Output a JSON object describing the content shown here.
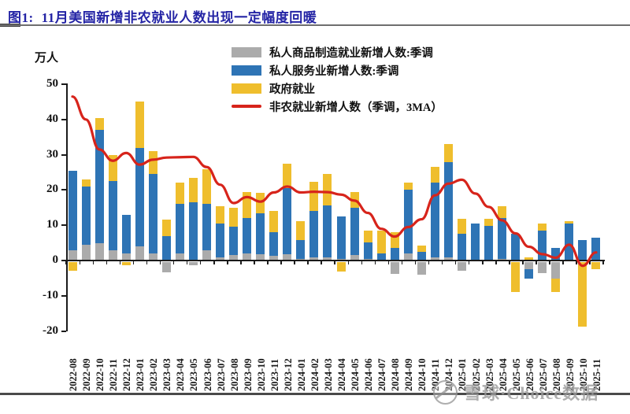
{
  "figure": {
    "label": "图1:",
    "title": "11月美国新增非农就业人数出现一定幅度回暖"
  },
  "unit_label": "万人",
  "legend": {
    "items": [
      {
        "label": "私人商品制造就业新增人数:季调",
        "color": "#ABABAB",
        "type": "box"
      },
      {
        "label": "私人服务业新增人数:季调",
        "color": "#2E74B5",
        "type": "box"
      },
      {
        "label": "政府就业",
        "color": "#EFBE2D",
        "type": "box"
      },
      {
        "label": "非农就业新增人数（季调，3MA）",
        "color": "#D7241B",
        "type": "line"
      }
    ]
  },
  "watermark": {
    "text": "雪球·Choice数据"
  },
  "colors": {
    "title": "#2424a5",
    "goods_bar": "#ABABAB",
    "services_bar": "#2E74B5",
    "government_bar": "#EFBE2D",
    "trend_line": "#D7241B"
  },
  "chart_data": {
    "type": "bar",
    "subtype": "stacked-bar-with-line",
    "stacked": true,
    "grid": false,
    "legend_position": "top",
    "ylabel": "万人",
    "ylim": [
      -20,
      50
    ],
    "yticks": [
      -20,
      -10,
      0,
      10,
      20,
      30,
      40,
      50
    ],
    "categories": [
      "2022-08",
      "2022-09",
      "2022-10",
      "2022-11",
      "2022-12",
      "2023-01",
      "2023-02",
      "2023-03",
      "2023-04",
      "2023-05",
      "2023-06",
      "2023-07",
      "2023-08",
      "2023-09",
      "2023-10",
      "2023-11",
      "2023-12",
      "2024-01",
      "2024-02",
      "2024-03",
      "2024-04",
      "2024-05",
      "2024-06",
      "2024-07",
      "2024-08",
      "2024-09",
      "2024-10",
      "2024-11",
      "2024-12",
      "2025-01",
      "2025-02",
      "2025-03",
      "2025-04",
      "2025-05",
      "2025-06",
      "2025-07",
      "2025-08",
      "2025-09",
      "2025-10",
      "2025-11"
    ],
    "series": [
      {
        "name": "私人商品制造就业新增人数:季调",
        "type": "bar",
        "color": "#ABABAB",
        "values": [
          3,
          4.5,
          5,
          3,
          2,
          4,
          2,
          -3,
          2,
          -1,
          3,
          1,
          1.5,
          2,
          1.7,
          1.3,
          1.7,
          0.5,
          1,
          1,
          0.5,
          1.5,
          0.5,
          0,
          -3.4,
          2,
          -3.5,
          1,
          1,
          -2.5,
          0,
          0,
          0.5,
          0,
          -2.1,
          -3.2,
          -4.7,
          0,
          0,
          0
        ]
      },
      {
        "name": "私人服务业新增人数:季调",
        "type": "bar",
        "color": "#2E74B5",
        "values": [
          22.5,
          16.5,
          32,
          19.5,
          11,
          28,
          22.5,
          7,
          14,
          16.5,
          13,
          9.5,
          8,
          10,
          11.6,
          6.7,
          18.8,
          5.3,
          13.1,
          14.6,
          12.1,
          13.5,
          4.7,
          2,
          3.5,
          18,
          2.4,
          21,
          27,
          7.5,
          10.5,
          9.9,
          11.5,
          7.5,
          -2.6,
          8.4,
          3.5,
          10.5,
          5.8,
          6.5
        ]
      },
      {
        "name": "政府就业",
        "type": "bar",
        "color": "#EFBE2D",
        "values": [
          -2.5,
          2,
          3.5,
          7.5,
          -1,
          13,
          6.5,
          4.5,
          6,
          7,
          10,
          5,
          5.5,
          7.5,
          6,
          6.1,
          7,
          5.3,
          8.2,
          9,
          -2.6,
          4.5,
          3.2,
          6.4,
          4.5,
          2,
          1.9,
          4.5,
          5,
          4.3,
          0,
          1.9,
          3.4,
          -8.5,
          0.9,
          2.1,
          -3.8,
          0.7,
          -18.4,
          -2
        ]
      },
      {
        "name": "非农就业新增人数（季调，3MA）",
        "type": "line",
        "color": "#D7241B",
        "values": [
          46.5,
          40,
          31.5,
          28.3,
          30.5,
          27.2,
          28.6,
          29.2,
          29.3,
          29.4,
          26.5,
          21.5,
          16.3,
          18,
          16.7,
          19.3,
          21,
          19.3,
          19.5,
          19.4,
          18.7,
          17,
          13.5,
          9,
          6.8,
          9.5,
          11.7,
          18.5,
          21.8,
          22.9,
          19,
          15.2,
          11.4,
          7.7,
          3.9,
          1.8,
          0.8,
          4.5,
          -1.5,
          2.3
        ]
      }
    ]
  }
}
